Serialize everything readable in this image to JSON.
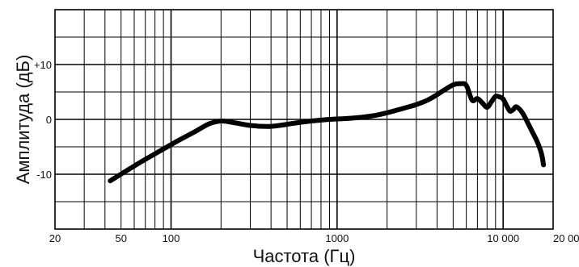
{
  "chart_data": {
    "type": "line",
    "title": "",
    "xlabel": "Частота (Гц)",
    "ylabel": "Амплитуда (дБ)",
    "x_scale": "log",
    "xlim": [
      20,
      20000
    ],
    "ylim": [
      -20,
      20
    ],
    "grid": true,
    "x_tick_labels": [
      {
        "value": 20,
        "label": "20"
      },
      {
        "value": 50,
        "label": "50"
      },
      {
        "value": 100,
        "label": "100"
      },
      {
        "value": 1000,
        "label": "1000"
      },
      {
        "value": 10000,
        "label": "10 000"
      },
      {
        "value": 20000,
        "label": "20 000"
      }
    ],
    "y_tick_labels": [
      {
        "value": 10,
        "label": "+10"
      },
      {
        "value": 0,
        "label": "0"
      },
      {
        "value": -10,
        "label": "-10"
      }
    ],
    "series": [
      {
        "color": "#000000",
        "x": [
          43,
          55,
          70,
          90,
          110,
          140,
          170,
          200,
          240,
          300,
          380,
          450,
          550,
          700,
          900,
          1200,
          1600,
          2000,
          2500,
          3000,
          3500,
          4000,
          4500,
          5000,
          5500,
          6000,
          6500,
          7000,
          7500,
          8000,
          8500,
          9000,
          9500,
          10000,
          10500,
          11000,
          11500,
          12000,
          13000,
          14000,
          15000,
          16000,
          17000,
          17500
        ],
        "y": [
          -11.2,
          -9.2,
          -7.3,
          -5.4,
          -3.9,
          -2.2,
          -0.8,
          -0.3,
          -0.6,
          -1.1,
          -1.3,
          -1.1,
          -0.7,
          -0.3,
          0.0,
          0.2,
          0.6,
          1.2,
          2.0,
          2.7,
          3.5,
          4.5,
          5.5,
          6.3,
          6.5,
          6.2,
          3.5,
          3.8,
          3.0,
          2.2,
          3.2,
          4.2,
          4.1,
          3.7,
          2.5,
          1.5,
          1.8,
          2.3,
          1.3,
          -0.5,
          -2.3,
          -4.0,
          -6.2,
          -8.3
        ]
      }
    ]
  }
}
